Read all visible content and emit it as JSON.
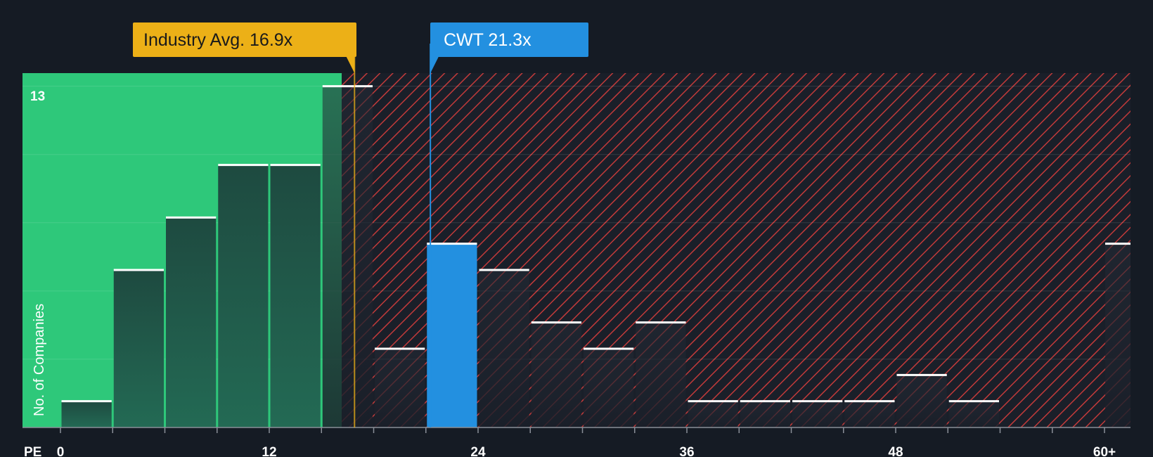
{
  "chart_data": {
    "type": "bar",
    "x_axis_title": "PE",
    "ylabel": "No. of Companies",
    "y_max_label": "13",
    "ylim": [
      0,
      13.5
    ],
    "x_tick_labels": [
      {
        "value": 0,
        "label": "0"
      },
      {
        "value": 12,
        "label": "12"
      },
      {
        "value": 24,
        "label": "24"
      },
      {
        "value": 36,
        "label": "36"
      },
      {
        "value": 48,
        "label": "48"
      },
      {
        "value": 60,
        "label": "60+"
      }
    ],
    "bin_width": 3,
    "bins": [
      {
        "x_start": 0,
        "count": 1
      },
      {
        "x_start": 3,
        "count": 6
      },
      {
        "x_start": 6,
        "count": 8
      },
      {
        "x_start": 9,
        "count": 10
      },
      {
        "x_start": 12,
        "count": 10
      },
      {
        "x_start": 15,
        "count": 13
      },
      {
        "x_start": 18,
        "count": 3
      },
      {
        "x_start": 21,
        "count": 7,
        "highlight": true
      },
      {
        "x_start": 24,
        "count": 6
      },
      {
        "x_start": 27,
        "count": 4
      },
      {
        "x_start": 30,
        "count": 3
      },
      {
        "x_start": 33,
        "count": 4
      },
      {
        "x_start": 36,
        "count": 1
      },
      {
        "x_start": 39,
        "count": 1
      },
      {
        "x_start": 42,
        "count": 1
      },
      {
        "x_start": 45,
        "count": 1
      },
      {
        "x_start": 48,
        "count": 2
      },
      {
        "x_start": 51,
        "count": 1
      },
      {
        "x_start": 54,
        "count": 0
      },
      {
        "x_start": 57,
        "count": 0
      },
      {
        "x_start": 60,
        "count": 7
      }
    ],
    "industry_avg": {
      "label": "Industry Avg. 16.9x",
      "value": 16.9
    },
    "company": {
      "label": "CWT 21.3x",
      "value": 21.3
    },
    "colors": {
      "background": "#151b24",
      "below_zone": "#2ec87a",
      "above_zone_hatch": "#c23a3a",
      "bar_dark": "#1e4a40",
      "company_bar": "#2390e0",
      "industry_callout": "#ecb017",
      "company_callout": "#2390e0",
      "bar_cap": "#ffffff"
    }
  }
}
